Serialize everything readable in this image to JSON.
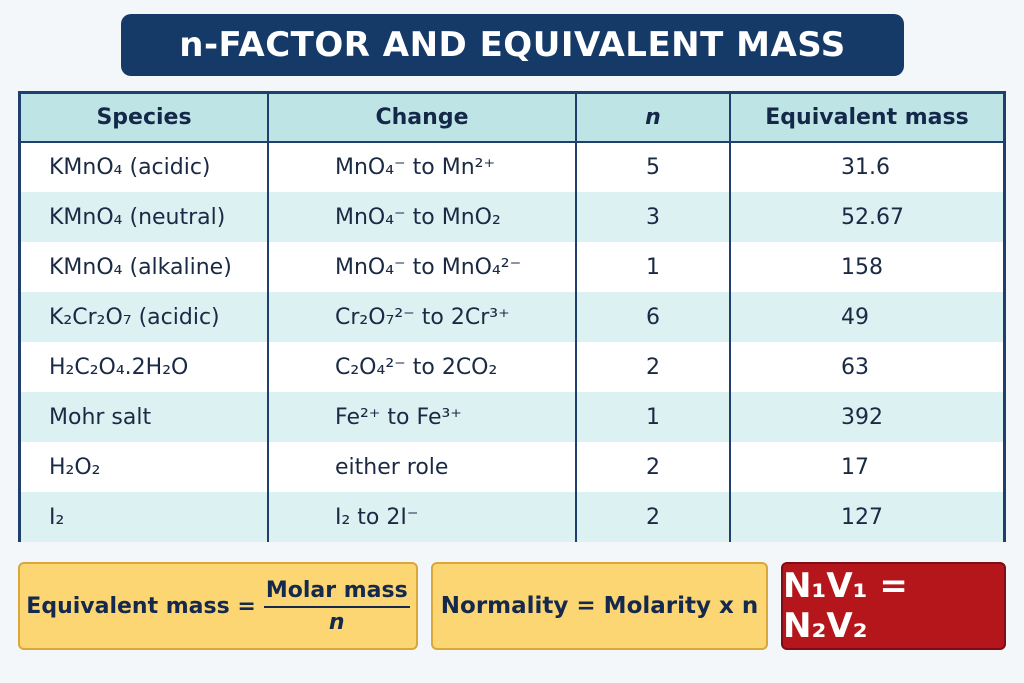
{
  "title": "n-FACTOR AND EQUIVALENT MASS",
  "table": {
    "headers": [
      "Species",
      "Change",
      "n",
      "Equivalent mass"
    ],
    "rows": [
      [
        "KMnO₄ (acidic)",
        "MnO₄⁻  to Mn²⁺",
        "5",
        "31.6"
      ],
      [
        "KMnO₄ (neutral)",
        "MnO₄⁻  to MnO₂",
        "3",
        "52.67"
      ],
      [
        "KMnO₄ (alkaline)",
        "MnO₄⁻  to MnO₄²⁻",
        "1",
        "158"
      ],
      [
        "K₂Cr₂O₇ (acidic)",
        "Cr₂O₇²⁻  to 2Cr³⁺",
        "6",
        "49"
      ],
      [
        "H₂C₂O₄.2H₂O",
        "C₂O₄²⁻  to 2CO₂",
        "2",
        "63"
      ],
      [
        "Mohr salt",
        "Fe²⁺  to Fe³⁺",
        "1",
        "392"
      ],
      [
        "H₂O₂",
        "either role",
        "2",
        "17"
      ],
      [
        "I₂",
        "I₂ to 2I⁻",
        "2",
        "127"
      ]
    ]
  },
  "formulas": {
    "equivalent_mass_label": "Equivalent mass =",
    "equivalent_mass_numerator": "Molar mass",
    "equivalent_mass_denominator": "n",
    "normality": "Normality = Molarity x n",
    "titration": "N₁V₁ = N₂V₂"
  },
  "colors": {
    "title_bg": "#163a68",
    "header_bg": "#bfe4e6",
    "alt_row_bg": "#dcf1f2",
    "formula_box_bg": "#fbd672",
    "titration_box_bg": "#b5161b"
  }
}
